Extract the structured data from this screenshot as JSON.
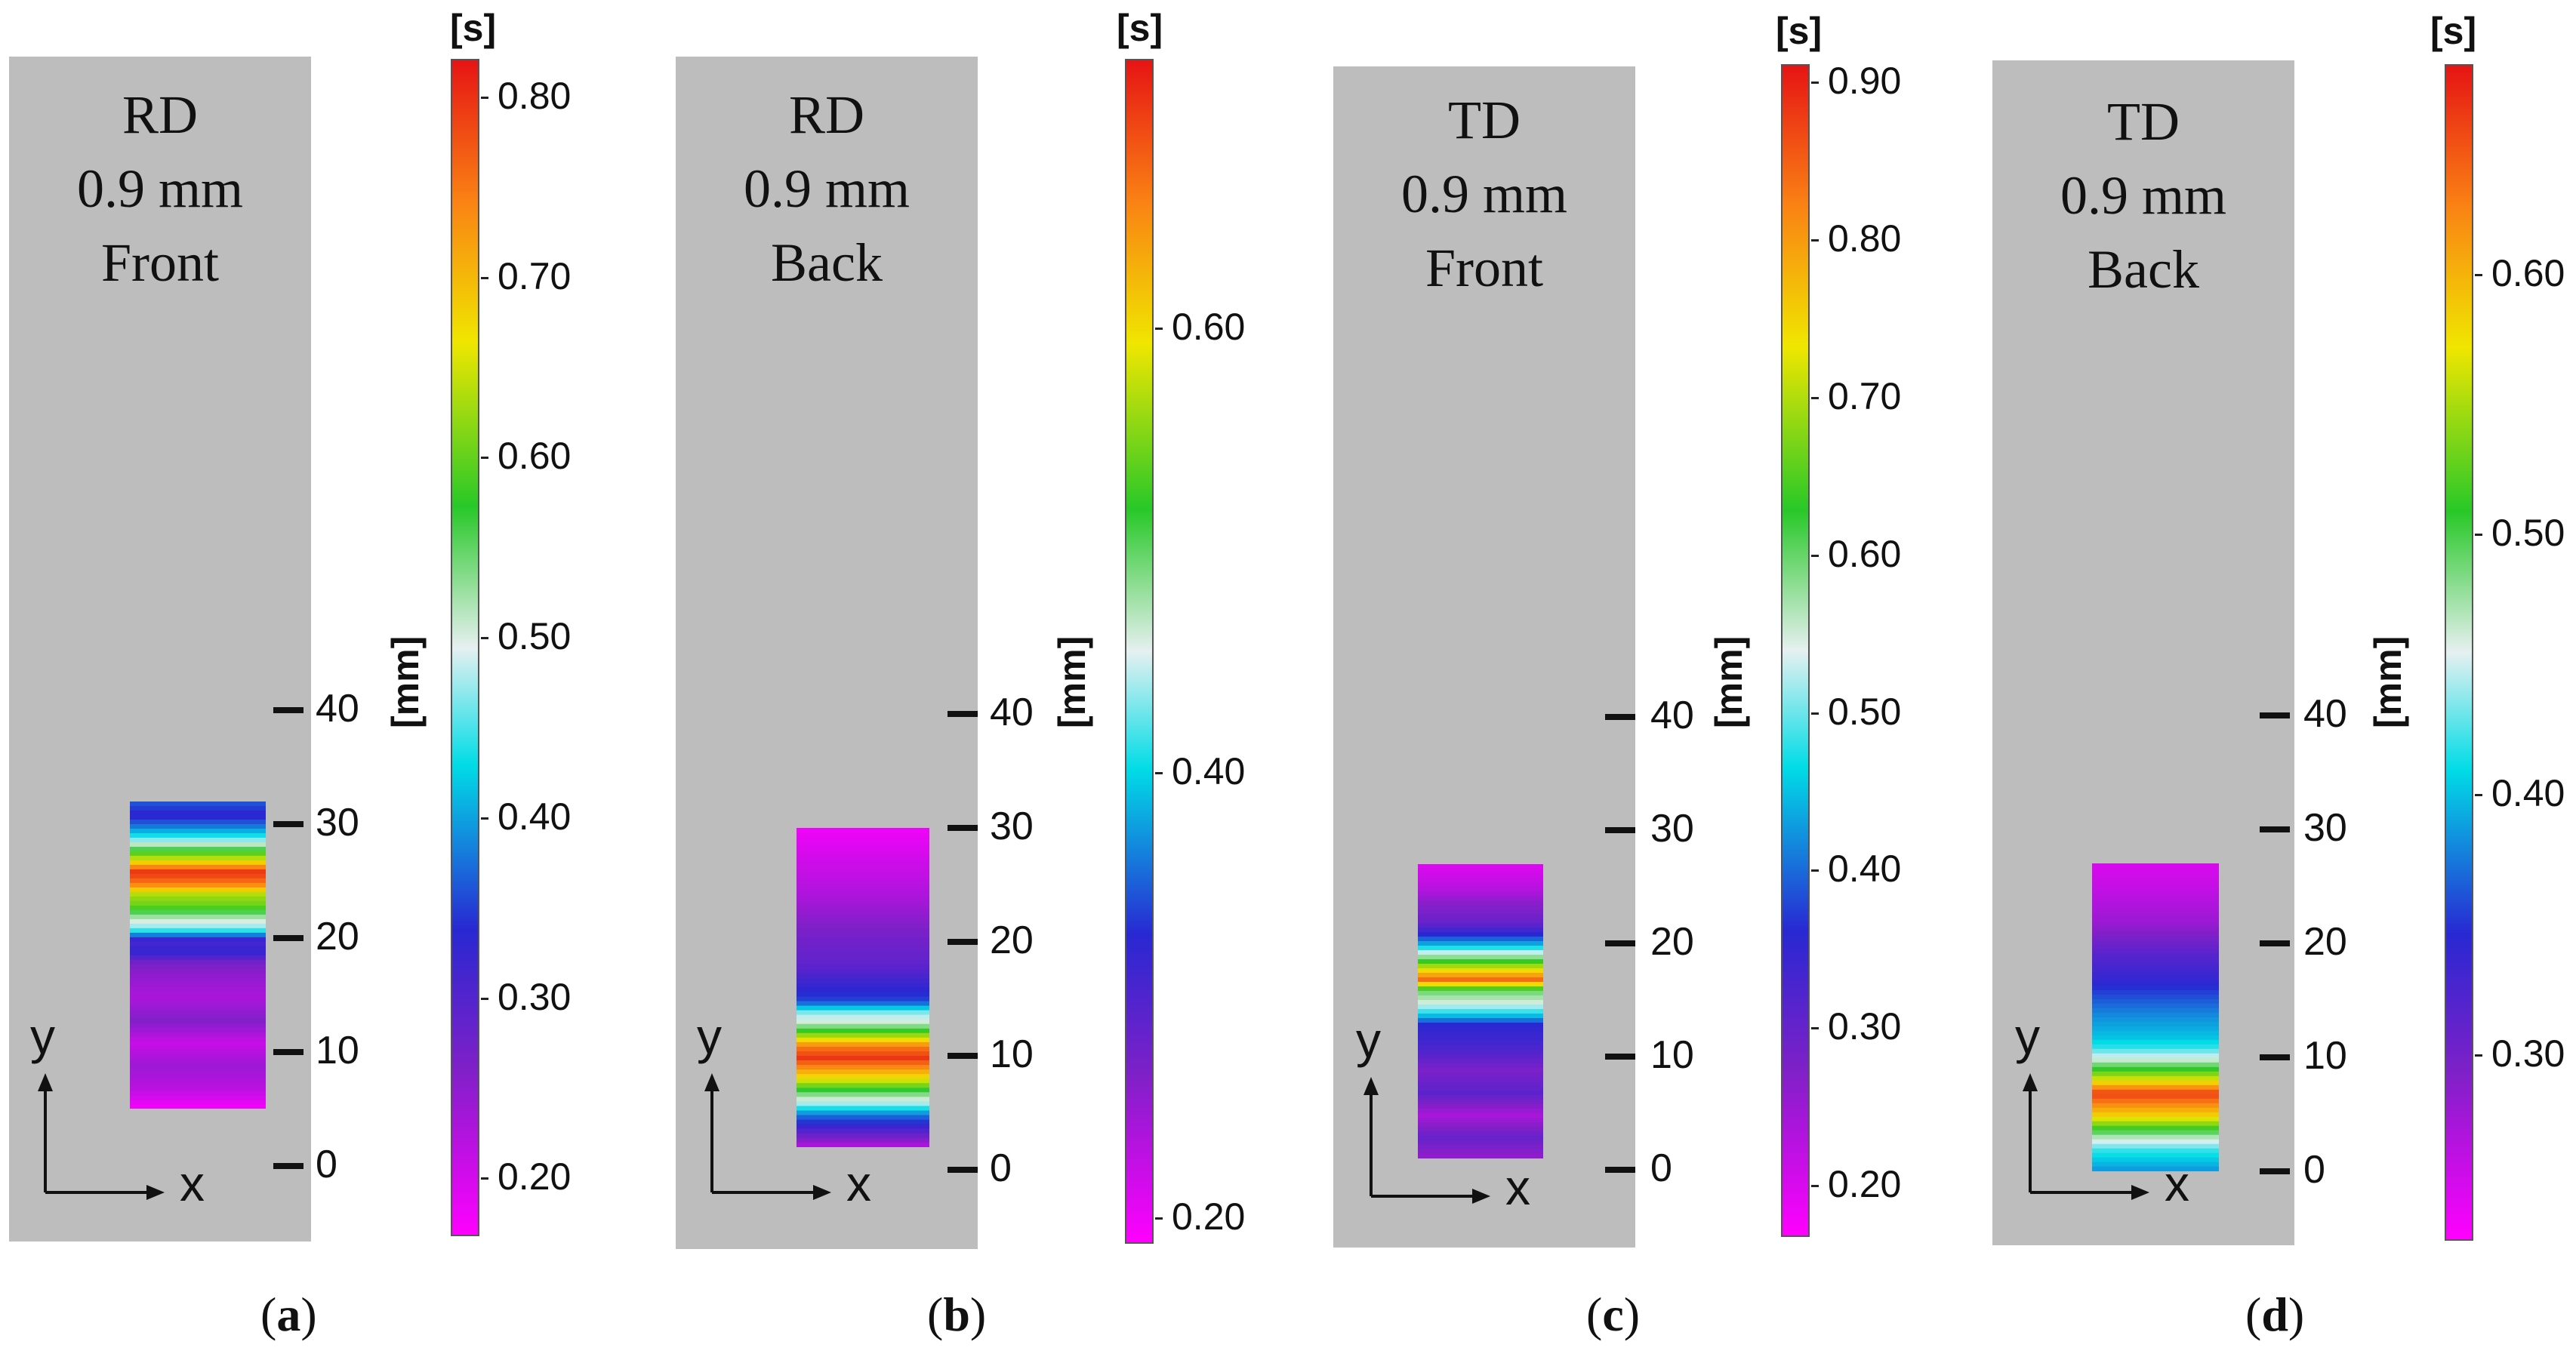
{
  "chart_data": [
    {
      "type": "heatmap",
      "caption": "a",
      "titles": [
        "RD",
        "0.9 mm",
        "Front"
      ],
      "y_axis": {
        "ticks": [
          0,
          10,
          20,
          30,
          40
        ],
        "label": "[mm]"
      },
      "axis_arrows": {
        "x": "x",
        "y": "y"
      },
      "colorbar": {
        "unit": "[s]",
        "min": 0.17,
        "max": 0.82,
        "ticks": [
          0.2,
          0.3,
          0.4,
          0.5,
          0.6,
          0.7,
          0.8
        ],
        "tick_labels": [
          "0.20",
          "0.30",
          "0.40",
          "0.50",
          "0.60",
          "0.70",
          "0.80"
        ]
      },
      "specimen_y_range_mm": [
        5,
        32
      ],
      "profile": [
        [
          5,
          0.17
        ],
        [
          7,
          0.22
        ],
        [
          9,
          0.24
        ],
        [
          11,
          0.21
        ],
        [
          13,
          0.26
        ],
        [
          15,
          0.23
        ],
        [
          17,
          0.25
        ],
        [
          18,
          0.27
        ],
        [
          19,
          0.33
        ],
        [
          20,
          0.31
        ],
        [
          21,
          0.46
        ],
        [
          22,
          0.52
        ],
        [
          23,
          0.6
        ],
        [
          24,
          0.63
        ],
        [
          25,
          0.75
        ],
        [
          26,
          0.8
        ],
        [
          27,
          0.66
        ],
        [
          28,
          0.56
        ],
        [
          29,
          0.45
        ],
        [
          30,
          0.38
        ],
        [
          31,
          0.33
        ],
        [
          32,
          0.36
        ]
      ]
    },
    {
      "type": "heatmap",
      "caption": "b",
      "titles": [
        "RD",
        "0.9 mm",
        "Back"
      ],
      "y_axis": {
        "ticks": [
          0,
          10,
          20,
          30,
          40
        ],
        "label": "[mm]"
      },
      "axis_arrows": {
        "x": "x",
        "y": "y"
      },
      "colorbar": {
        "unit": "[s]",
        "min": 0.19,
        "max": 0.72,
        "ticks": [
          0.2,
          0.4,
          0.6
        ],
        "tick_labels": [
          "0.20",
          "0.40",
          "0.60"
        ]
      },
      "specimen_y_range_mm": [
        2,
        30
      ],
      "profile": [
        [
          2,
          0.22
        ],
        [
          3,
          0.27
        ],
        [
          5,
          0.36
        ],
        [
          6,
          0.44
        ],
        [
          7,
          0.5
        ],
        [
          8,
          0.58
        ],
        [
          9,
          0.64
        ],
        [
          10,
          0.7
        ],
        [
          11,
          0.66
        ],
        [
          12,
          0.56
        ],
        [
          13,
          0.47
        ],
        [
          14,
          0.43
        ],
        [
          15,
          0.34
        ],
        [
          18,
          0.29
        ],
        [
          21,
          0.27
        ],
        [
          24,
          0.24
        ],
        [
          27,
          0.22
        ],
        [
          30,
          0.2
        ]
      ]
    },
    {
      "type": "heatmap",
      "caption": "c",
      "titles": [
        "TD",
        "0.9 mm",
        "Front"
      ],
      "y_axis": {
        "ticks": [
          0,
          10,
          20,
          30,
          40
        ],
        "label": "[mm]"
      },
      "axis_arrows": {
        "x": "x",
        "y": "y"
      },
      "colorbar": {
        "unit": "[s]",
        "min": 0.17,
        "max": 0.91,
        "ticks": [
          0.2,
          0.3,
          0.4,
          0.5,
          0.6,
          0.7,
          0.8,
          0.9
        ],
        "tick_labels": [
          "0.20",
          "0.30",
          "0.40",
          "0.50",
          "0.60",
          "0.70",
          "0.80",
          "0.90"
        ]
      },
      "specimen_y_range_mm": [
        1,
        27
      ],
      "profile": [
        [
          1,
          0.25
        ],
        [
          3,
          0.3
        ],
        [
          5,
          0.24
        ],
        [
          7,
          0.31
        ],
        [
          9,
          0.28
        ],
        [
          11,
          0.33
        ],
        [
          13,
          0.36
        ],
        [
          14,
          0.47
        ],
        [
          15,
          0.55
        ],
        [
          16,
          0.6
        ],
        [
          17,
          0.84
        ],
        [
          18,
          0.72
        ],
        [
          19,
          0.58
        ],
        [
          20,
          0.45
        ],
        [
          21,
          0.36
        ],
        [
          22,
          0.3
        ],
        [
          24,
          0.26
        ],
        [
          25,
          0.23
        ],
        [
          27,
          0.2
        ]
      ]
    },
    {
      "type": "heatmap",
      "caption": "d",
      "titles": [
        "TD",
        "0.9 mm",
        "Back"
      ],
      "y_axis": {
        "ticks": [
          0,
          10,
          20,
          30,
          40
        ],
        "label": "[mm]"
      },
      "axis_arrows": {
        "x": "x",
        "y": "y"
      },
      "colorbar": {
        "unit": "[s]",
        "min": 0.23,
        "max": 0.68,
        "ticks": [
          0.3,
          0.4,
          0.5,
          0.6
        ],
        "tick_labels": [
          "0.30",
          "0.40",
          "0.50",
          "0.60"
        ]
      },
      "specimen_y_range_mm": [
        0,
        27
      ],
      "profile": [
        [
          0,
          0.38
        ],
        [
          2,
          0.42
        ],
        [
          3,
          0.46
        ],
        [
          4,
          0.52
        ],
        [
          5,
          0.58
        ],
        [
          6,
          0.62
        ],
        [
          7,
          0.66
        ],
        [
          8,
          0.58
        ],
        [
          9,
          0.52
        ],
        [
          10,
          0.46
        ],
        [
          11,
          0.42
        ],
        [
          12,
          0.4
        ],
        [
          14,
          0.38
        ],
        [
          17,
          0.34
        ],
        [
          19,
          0.32
        ],
        [
          22,
          0.28
        ],
        [
          25,
          0.26
        ],
        [
          27,
          0.25
        ]
      ]
    }
  ]
}
